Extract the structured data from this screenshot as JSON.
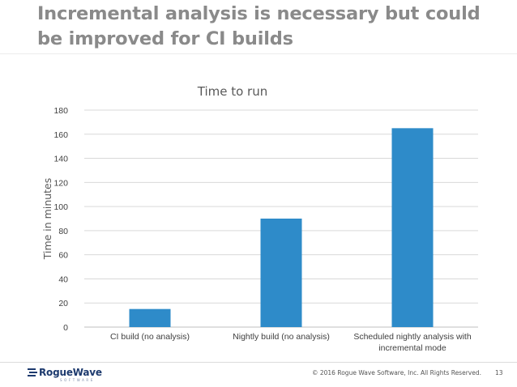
{
  "slide": {
    "title": "Incremental analysis is necessary but could be improved for CI builds"
  },
  "chart_data": {
    "type": "bar",
    "title": "Time to run",
    "ylabel": "Time in minutes",
    "xlabel": "",
    "categories": [
      "CI build (no analysis)",
      "Nightly build (no analysis)",
      "Scheduled nightly analysis with incremental mode"
    ],
    "category_lines": [
      [
        "CI build (no analysis)"
      ],
      [
        "Nightly build (no analysis)"
      ],
      [
        "Scheduled nightly analysis with",
        "incremental mode"
      ]
    ],
    "values": [
      15,
      90,
      165
    ],
    "ylim": [
      0,
      180
    ],
    "yticks": [
      "0",
      "20",
      "40",
      "60",
      "80",
      "100",
      "120",
      "140",
      "160",
      "180"
    ],
    "grid": true,
    "bar_color": "#2e8bc9",
    "grid_color": "#d9d9d9"
  },
  "footer": {
    "logo_text": "RogueWave",
    "logo_sub": "SOFTWARE",
    "copyright": "© 2016 Rogue Wave Software, Inc. All Rights Reserved.",
    "page_number": "13"
  }
}
